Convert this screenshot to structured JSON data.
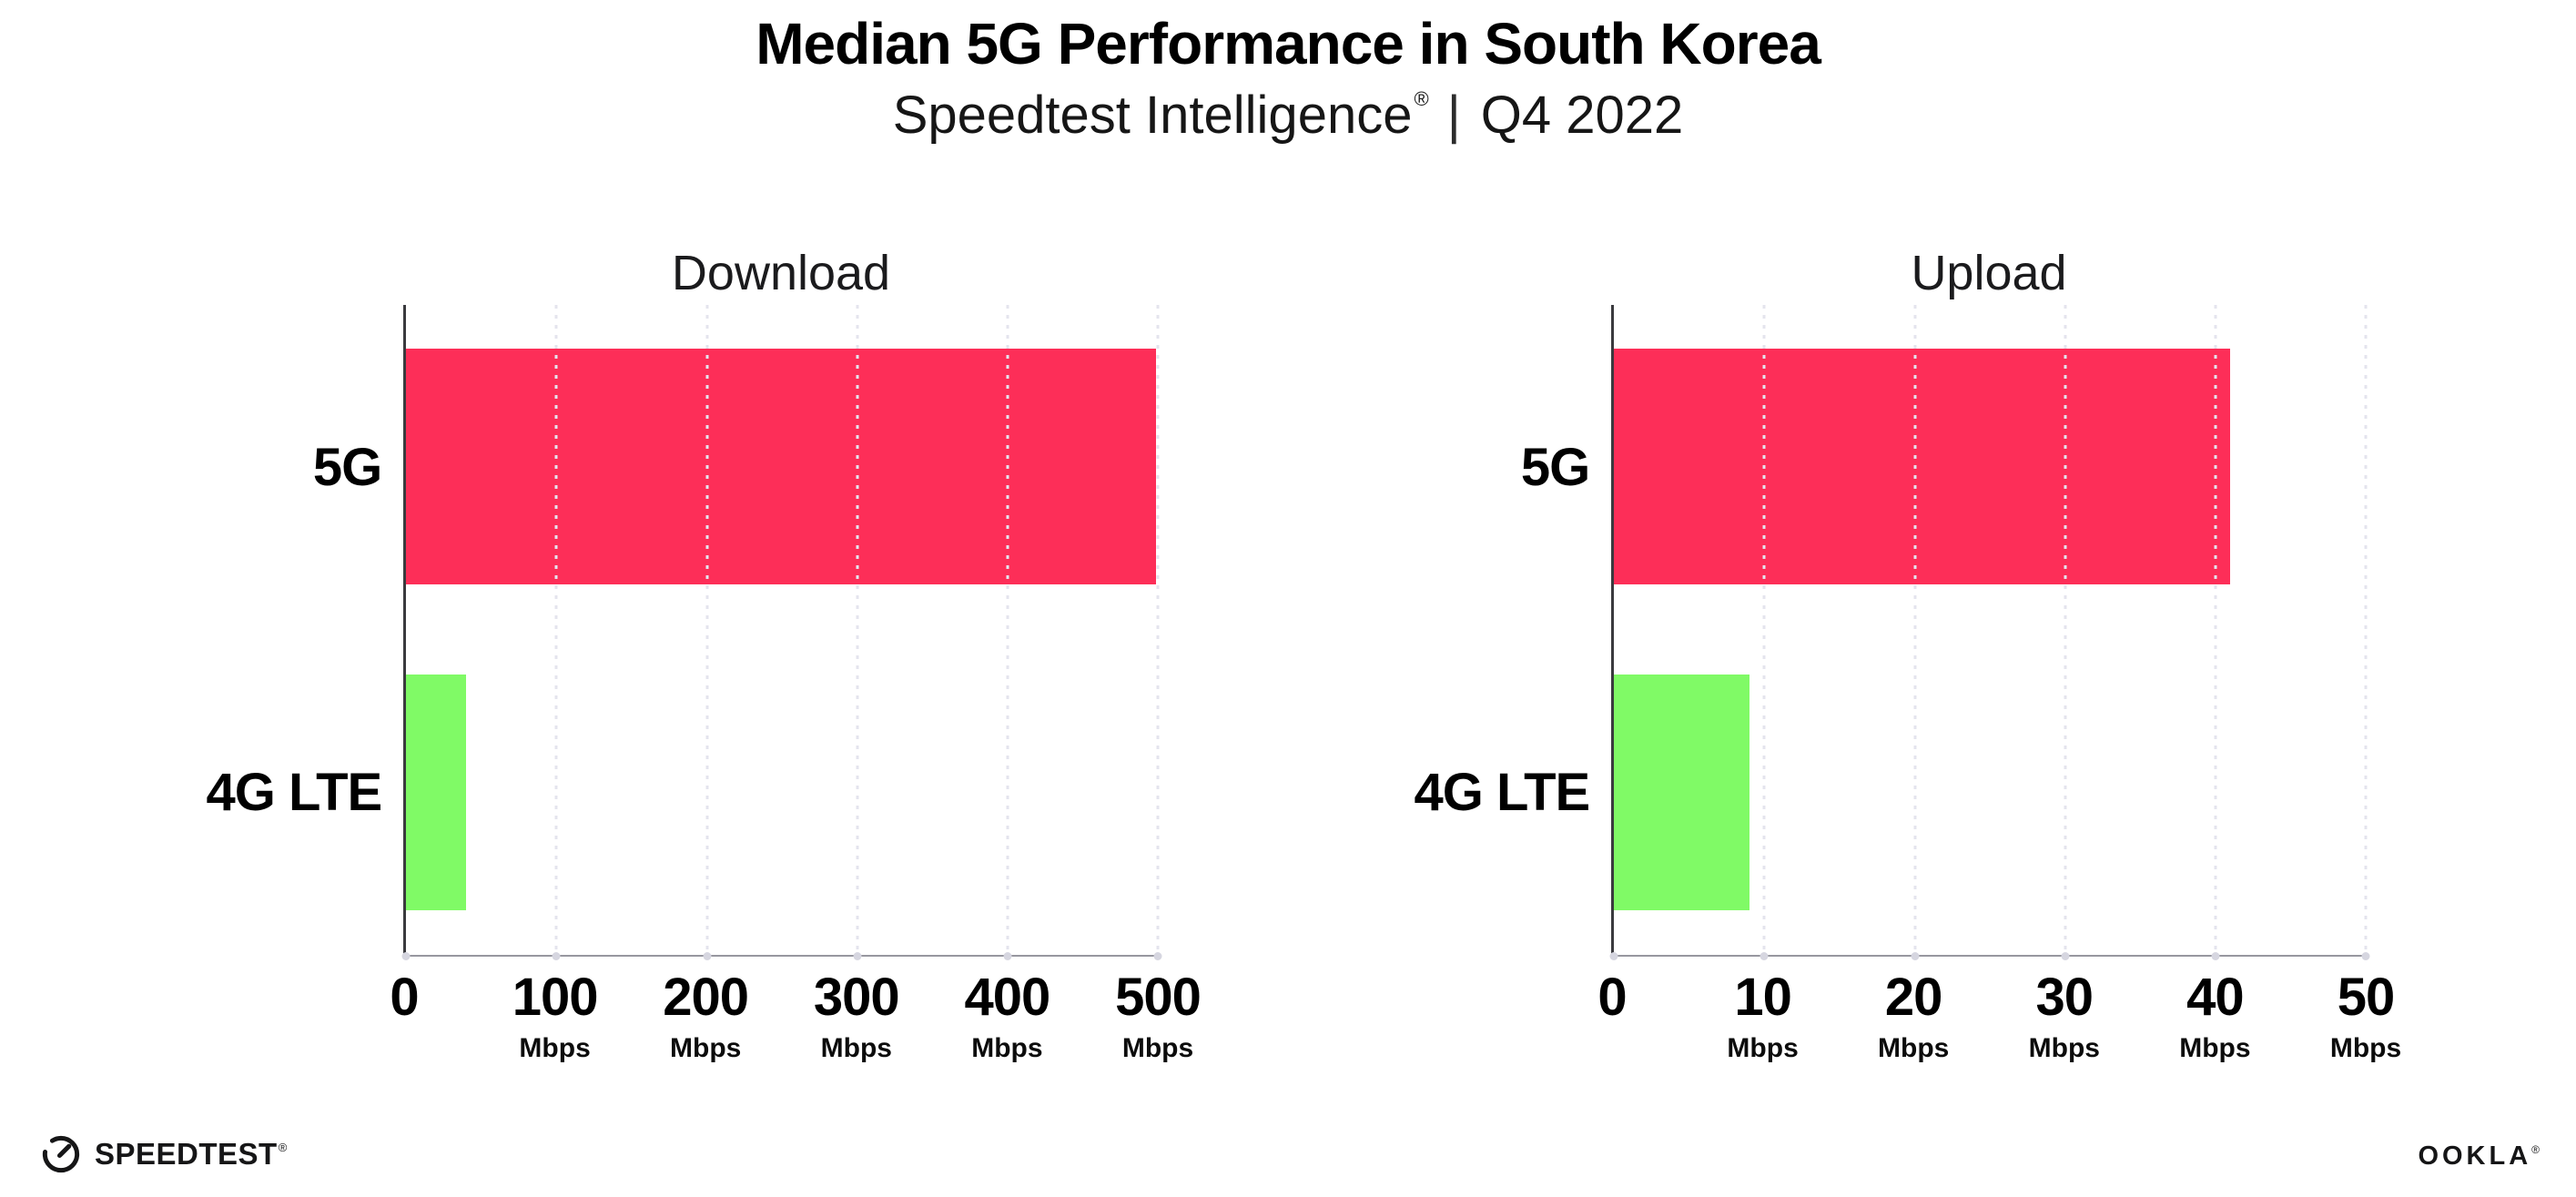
{
  "header": {
    "title": "Median 5G Performance in South Korea",
    "subtitle_product": "Speedtest Intelligence",
    "subtitle_reg": "®",
    "subtitle_separator": "|",
    "subtitle_period": "Q4 2022"
  },
  "chart_data": [
    {
      "type": "bar",
      "orientation": "horizontal",
      "title": "Download",
      "categories": [
        "5G",
        "4G LTE"
      ],
      "values": [
        499,
        40
      ],
      "xlim": [
        0,
        500
      ],
      "ticks": [
        0,
        100,
        200,
        300,
        400,
        500
      ],
      "tick_unit": "Mbps",
      "bar_colors": [
        "#FD2E58",
        "#80FA66"
      ],
      "grid": "dotted-vertical",
      "legend": "none"
    },
    {
      "type": "bar",
      "orientation": "horizontal",
      "title": "Upload",
      "categories": [
        "5G",
        "4G LTE"
      ],
      "values": [
        41,
        9
      ],
      "xlim": [
        0,
        50
      ],
      "ticks": [
        0,
        10,
        20,
        30,
        40,
        50
      ],
      "tick_unit": "Mbps",
      "bar_colors": [
        "#FD2E58",
        "#80FA66"
      ],
      "grid": "dotted-vertical",
      "legend": "none"
    }
  ],
  "colors": {
    "bar_5g": "#FD2E58",
    "bar_4g_lte": "#80FA66",
    "gridline": "#e4e4ee",
    "y_axis": "#3a3a3e",
    "x_axis": "#97979f",
    "background": "#ffffff"
  },
  "footer": {
    "speedtest_logo_text": "SPEEDTEST",
    "speedtest_reg": "®",
    "ookla_logo_text": "OOKLA",
    "ookla_reg": "®"
  }
}
